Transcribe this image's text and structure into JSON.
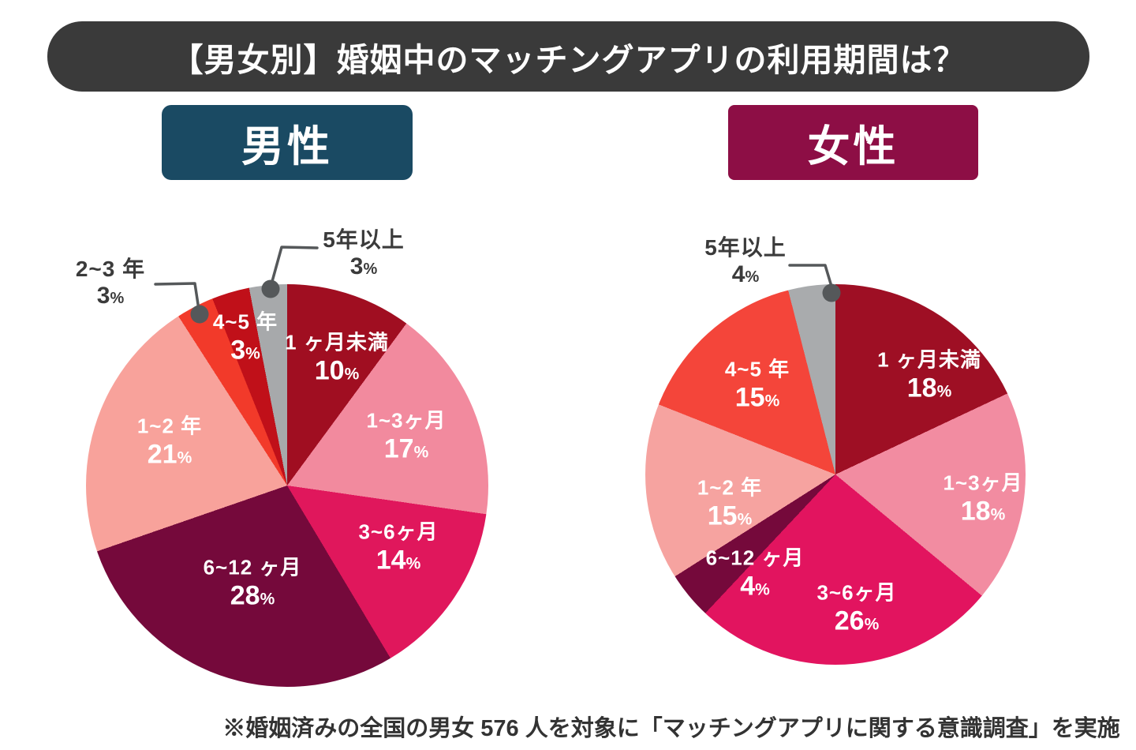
{
  "title": "【男女別】婚姻中のマッチングアプリの利用期間は？",
  "footer": "※婚姻済みの全国の男女 576 人を対象に「マッチングアプリに関する意識調査」を実施",
  "colors": {
    "banner_bg": "#3a3a3a",
    "male_header_bg": "#1a4a63",
    "female_header_bg": "#8d0e45",
    "callout_line": "#55585a",
    "callout_text": "#3b3b3b"
  },
  "chart_data": [
    {
      "id": "male",
      "type": "pie",
      "title": "男性",
      "unit": "%",
      "legend_position": "none",
      "start_angle": 0,
      "slices": [
        {
          "label": "1 ヶ月未満",
          "value": 10,
          "color": "#a00e21"
        },
        {
          "label": "1~3ヶ月",
          "value": 17,
          "color": "#f28a9e"
        },
        {
          "label": "3~6ヶ月",
          "value": 14,
          "color": "#e0175c"
        },
        {
          "label": "6~12 ヶ月",
          "value": 28,
          "color": "#75093b"
        },
        {
          "label": "1~2 年",
          "value": 21,
          "color": "#f8a29b"
        },
        {
          "label": "2~3 年",
          "value": 3,
          "color": "#f23a2a"
        },
        {
          "label": "4~5 年",
          "value": 3,
          "color": "#c01019"
        },
        {
          "label": "5年以上",
          "value": 3,
          "color": "#a7a9ab"
        }
      ]
    },
    {
      "id": "female",
      "type": "pie",
      "title": "女性",
      "unit": "%",
      "legend_position": "none",
      "start_angle": 0,
      "slices": [
        {
          "label": "1 ヶ月未満",
          "value": 18,
          "color": "#9e0f24"
        },
        {
          "label": "1~3ヶ月",
          "value": 18,
          "color": "#f28ca1"
        },
        {
          "label": "3~6ヶ月",
          "value": 26,
          "color": "#e2145f"
        },
        {
          "label": "6~12 ヶ月",
          "value": 4,
          "color": "#75093b"
        },
        {
          "label": "1~2 年",
          "value": 15,
          "color": "#f6a3a0"
        },
        {
          "label": "4~5 年",
          "value": 15,
          "color": "#f4453a"
        },
        {
          "label": "5年以上",
          "value": 4,
          "color": "#a9abad"
        }
      ]
    }
  ]
}
